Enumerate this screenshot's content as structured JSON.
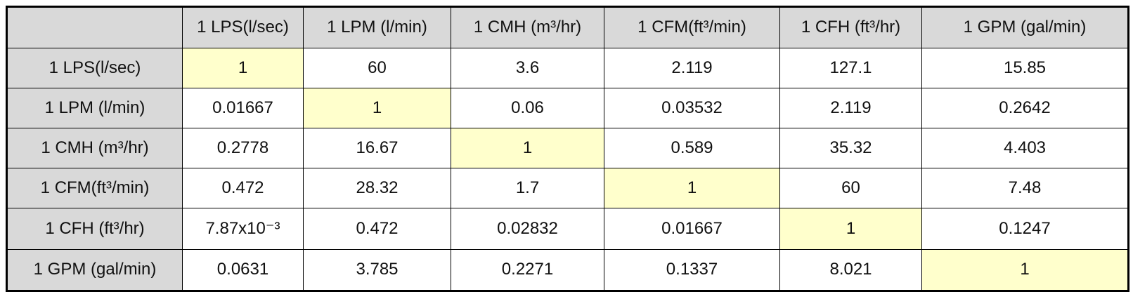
{
  "table": {
    "columns": [
      "1 LPS(l/sec)",
      "1 LPM (l/min)",
      "1 CMH (m³/hr)",
      "1 CFM(ft³/min)",
      "1 CFH (ft³/hr)",
      "1 GPM (gal/min)"
    ],
    "rows": [
      {
        "label": "1 LPS(l/sec)",
        "values": [
          "1",
          "60",
          "3.6",
          "2.119",
          "127.1",
          "15.85"
        ]
      },
      {
        "label": "1 LPM (l/min)",
        "values": [
          "0.01667",
          "1",
          "0.06",
          "0.03532",
          "2.119",
          "0.2642"
        ]
      },
      {
        "label": "1 CMH (m³/hr)",
        "values": [
          "0.2778",
          "16.67",
          "1",
          "0.589",
          "35.32",
          "4.403"
        ]
      },
      {
        "label": "1 CFM(ft³/min)",
        "values": [
          "0.472",
          "28.32",
          "1.7",
          "1",
          "60",
          "7.48"
        ]
      },
      {
        "label": "1 CFH (ft³/hr)",
        "values": [
          "7.87x10⁻³",
          "0.472",
          "0.02832",
          "0.01667",
          "1",
          "0.1247"
        ]
      },
      {
        "label": "1 GPM (gal/min)",
        "values": [
          "0.0631",
          "3.785",
          "0.2271",
          "0.1337",
          "8.021",
          "1"
        ]
      }
    ]
  }
}
